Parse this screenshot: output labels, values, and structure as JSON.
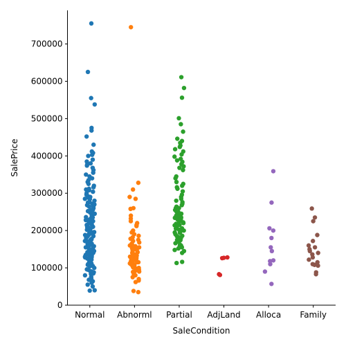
{
  "chart_data": {
    "type": "scatter",
    "subtype": "strip",
    "xlabel": "SaleCondition",
    "ylabel": "SalePrice",
    "categories": [
      "Normal",
      "Abnorml",
      "Partial",
      "AdjLand",
      "Alloca",
      "Family"
    ],
    "colors": [
      "#1f77b4",
      "#ff7f0e",
      "#2ca02c",
      "#d62728",
      "#9467bd",
      "#8c564b"
    ],
    "ylim": [
      0,
      790000
    ],
    "yticks": [
      0,
      100000,
      200000,
      300000,
      400000,
      500000,
      600000,
      700000
    ],
    "ytick_labels": [
      "0",
      "100000",
      "200000",
      "300000",
      "400000",
      "500000",
      "600000",
      "700000"
    ],
    "grid": false,
    "series": [
      {
        "category": "Normal",
        "values": [
          755000,
          625000,
          555000,
          538000,
          475000,
          468000,
          452000,
          430000,
          412000,
          408000,
          403000,
          400000,
          390000,
          385000,
          380000,
          377000,
          374000,
          368000,
          362000,
          355000,
          350000,
          345000,
          340000,
          335000,
          330000,
          325000,
          320000,
          316000,
          312000,
          308000,
          304000,
          300000,
          296000,
          292000,
          288000,
          284000,
          280000,
          276000,
          272000,
          268000,
          264000,
          260000,
          256000,
          252000,
          248000,
          244000,
          240000,
          236000,
          232000,
          228000,
          224000,
          220000,
          216000,
          212000,
          208000,
          204000,
          200000,
          196000,
          192000,
          188000,
          184000,
          180000,
          176000,
          172000,
          168000,
          164000,
          160000,
          156000,
          152000,
          148000,
          144000,
          140000,
          136000,
          132000,
          128000,
          124000,
          120000,
          116000,
          112000,
          108000,
          104000,
          100000,
          96000,
          92000,
          88000,
          84000,
          80000,
          76000,
          72000,
          68000,
          64000,
          60000,
          55000,
          50000,
          40000,
          39000,
          215000,
          205000,
          195000,
          185000,
          175000,
          165000,
          155000,
          145000,
          135000,
          125000,
          115000,
          105000,
          95000,
          85000,
          210000,
          190000,
          170000,
          150000,
          130000,
          110000,
          90000,
          225000,
          235000,
          245000,
          255000,
          265000,
          275000,
          285000,
          142000,
          138000,
          132000,
          128000,
          122000,
          118000,
          162000,
          158000,
          178000,
          182000,
          198000,
          202000,
          218000,
          222000,
          138000,
          148000,
          168000,
          188000,
          208000,
          228000,
          310000,
          290000,
          270000,
          250000,
          230000,
          210000,
          190000,
          170000,
          150000,
          130000
        ]
      },
      {
        "category": "Abnorml",
        "values": [
          745000,
          328000,
          310000,
          290000,
          285000,
          260000,
          258000,
          240000,
          232000,
          225000,
          220000,
          215000,
          212000,
          200000,
          195000,
          190000,
          186000,
          182000,
          178000,
          175000,
          172000,
          168000,
          165000,
          162000,
          158000,
          155000,
          152000,
          148000,
          145000,
          142000,
          139000,
          136000,
          133000,
          130000,
          127000,
          124000,
          121000,
          118000,
          115000,
          112000,
          110000,
          107000,
          104000,
          101000,
          98000,
          95000,
          92000,
          89000,
          86000,
          83000,
          80000,
          75000,
          70000,
          66000,
          62000,
          38000,
          35000,
          140000,
          130000,
          120000,
          110000,
          100000,
          90000,
          160000,
          150000,
          135000,
          125000,
          115000,
          105000,
          95000
        ]
      },
      {
        "category": "Partial",
        "values": [
          611000,
          582000,
          556000,
          501000,
          485000,
          465000,
          446000,
          440000,
          435000,
          428000,
          424000,
          418000,
          412000,
          404000,
          398000,
          392000,
          388000,
          384000,
          378000,
          372000,
          368000,
          362000,
          345000,
          340000,
          330000,
          325000,
          320000,
          316000,
          312000,
          305000,
          296000,
          290000,
          285000,
          280000,
          276000,
          272000,
          268000,
          264000,
          260000,
          255000,
          250000,
          246000,
          242000,
          238000,
          234000,
          230000,
          226000,
          222000,
          218000,
          214000,
          210000,
          206000,
          202000,
          198000,
          194000,
          190000,
          186000,
          182000,
          178000,
          174000,
          170000,
          166000,
          162000,
          158000,
          155000,
          152000,
          148000,
          145000,
          140000,
          116000,
          113000,
          240000,
          230000,
          220000,
          250000,
          260000,
          200000,
          180000,
          170000,
          160000,
          215000,
          225000,
          235000,
          245000,
          175000,
          185000,
          195000,
          205000
        ]
      },
      {
        "category": "AdjLand",
        "values": [
          128000,
          127000,
          126000,
          83000,
          81000
        ]
      },
      {
        "category": "Alloca",
        "values": [
          359000,
          275000,
          206000,
          200000,
          180000,
          155000,
          145000,
          120000,
          118000,
          110000,
          90000,
          57000
        ]
      },
      {
        "category": "Family",
        "values": [
          259000,
          235000,
          225000,
          188000,
          172000,
          160000,
          155000,
          150000,
          145000,
          140000,
          136000,
          128000,
          122000,
          115000,
          110000,
          108000,
          106000,
          88000,
          83000
        ]
      }
    ]
  }
}
